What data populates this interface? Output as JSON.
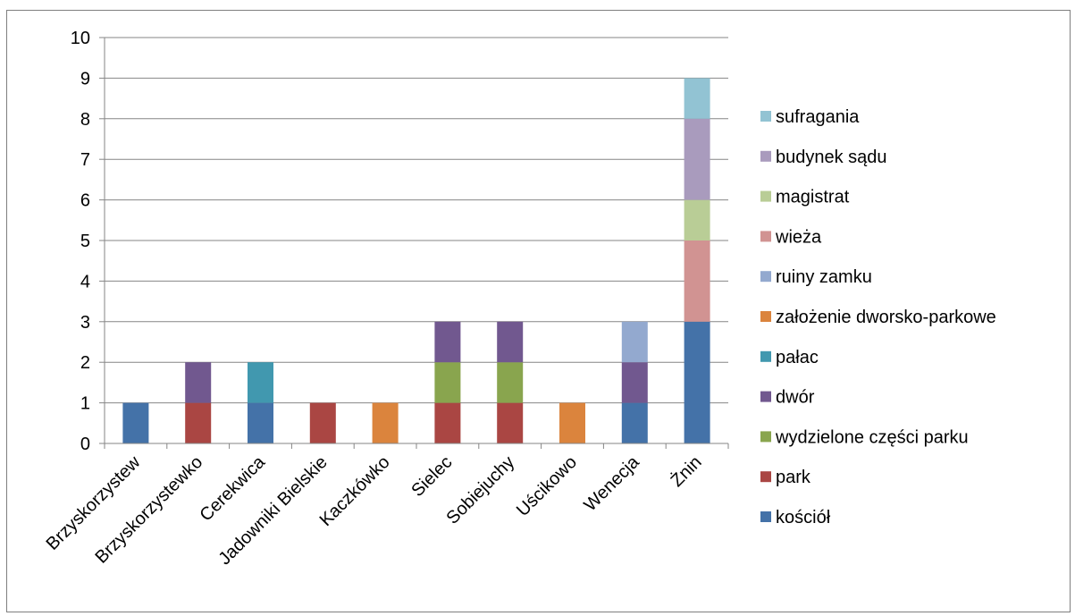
{
  "chart_data": {
    "type": "bar",
    "stacked": true,
    "categories": [
      "Brzyskorzystew",
      "Brzyskorzystewko",
      "Cerekwica",
      "Jadowniki Bielskie",
      "Kaczkówko",
      "Sielec",
      "Sobiejuchy",
      "Uścikowo",
      "Wenecja",
      "Żnin"
    ],
    "series": [
      {
        "name": "kościół",
        "color": "#4472a8",
        "values": [
          1,
          0,
          1,
          0,
          0,
          0,
          0,
          0,
          1,
          3
        ]
      },
      {
        "name": "park",
        "color": "#aa4643",
        "values": [
          0,
          1,
          0,
          1,
          0,
          1,
          1,
          0,
          0,
          0
        ]
      },
      {
        "name": "wydzielone części parku",
        "color": "#89a54e",
        "values": [
          0,
          0,
          0,
          0,
          0,
          1,
          1,
          0,
          0,
          0
        ]
      },
      {
        "name": "dwór",
        "color": "#71588f",
        "values": [
          0,
          1,
          0,
          0,
          0,
          1,
          1,
          0,
          1,
          0
        ]
      },
      {
        "name": "pałac",
        "color": "#4198af",
        "values": [
          0,
          0,
          1,
          0,
          0,
          0,
          0,
          0,
          0,
          0
        ]
      },
      {
        "name": "założenie dworsko-parkowe",
        "color": "#db843d",
        "values": [
          0,
          0,
          0,
          0,
          1,
          0,
          0,
          1,
          0,
          0
        ]
      },
      {
        "name": "ruiny zamku",
        "color": "#93a9cf",
        "values": [
          0,
          0,
          0,
          0,
          0,
          0,
          0,
          0,
          1,
          0
        ]
      },
      {
        "name": "wieża",
        "color": "#d19392",
        "values": [
          0,
          0,
          0,
          0,
          0,
          0,
          0,
          0,
          0,
          2
        ]
      },
      {
        "name": "magistrat",
        "color": "#b9cd96",
        "values": [
          0,
          0,
          0,
          0,
          0,
          0,
          0,
          0,
          0,
          1
        ]
      },
      {
        "name": "budynek sądu",
        "color": "#a99bbd",
        "values": [
          0,
          0,
          0,
          0,
          0,
          0,
          0,
          0,
          0,
          2
        ]
      },
      {
        "name": "sufragania",
        "color": "#92c3d3",
        "values": [
          0,
          0,
          0,
          0,
          0,
          0,
          0,
          0,
          0,
          1
        ]
      }
    ],
    "y_ticks": [
      "0",
      "1",
      "2",
      "3",
      "4",
      "5",
      "6",
      "7",
      "8",
      "9",
      "10"
    ],
    "ylim": [
      0,
      10
    ],
    "title": "",
    "xlabel": "",
    "ylabel": "",
    "grid": true,
    "legend_position": "right"
  }
}
